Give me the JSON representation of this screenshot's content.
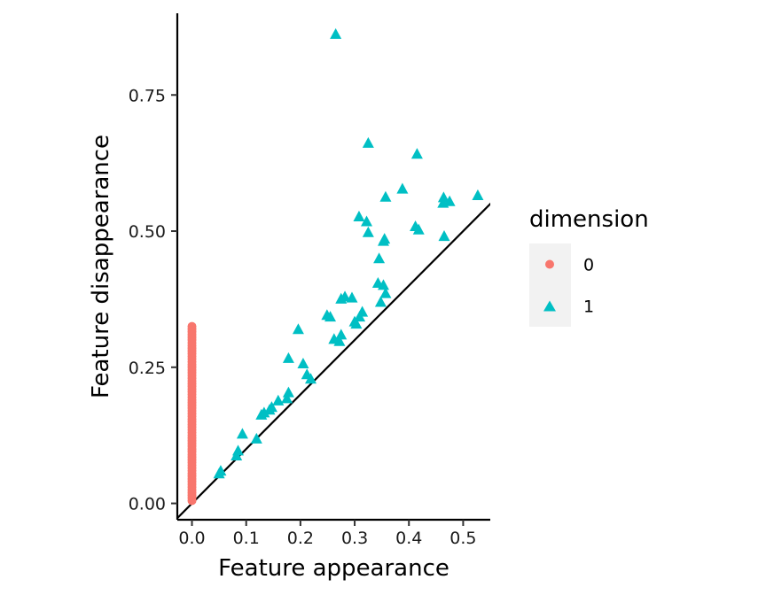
{
  "chart_data": {
    "type": "scatter",
    "title": "",
    "xlabel": "Feature appearance",
    "ylabel": "Feature disappearance",
    "xlim": [
      -0.027,
      0.55
    ],
    "ylim": [
      -0.03,
      0.9
    ],
    "x_ticks": [
      0.0,
      0.1,
      0.2,
      0.3,
      0.4,
      0.5
    ],
    "x_tick_labels": [
      "0.0",
      "0.1",
      "0.2",
      "0.3",
      "0.4",
      "0.5"
    ],
    "y_ticks": [
      0.0,
      0.25,
      0.5,
      0.75
    ],
    "y_tick_labels": [
      "0.00",
      "0.25",
      "0.50",
      "0.75"
    ],
    "grid": false,
    "diagonal_line": true,
    "legend": {
      "title": "dimension",
      "position": "right"
    },
    "series": [
      {
        "name": "0",
        "marker": "circle",
        "color": "#F8766D",
        "points": [
          [
            0,
            0.005
          ],
          [
            0,
            0.01
          ],
          [
            0,
            0.015
          ],
          [
            0,
            0.02
          ],
          [
            0,
            0.025
          ],
          [
            0,
            0.03
          ],
          [
            0,
            0.035
          ],
          [
            0,
            0.04
          ],
          [
            0,
            0.045
          ],
          [
            0,
            0.05
          ],
          [
            0,
            0.055
          ],
          [
            0,
            0.06
          ],
          [
            0,
            0.065
          ],
          [
            0,
            0.07
          ],
          [
            0,
            0.075
          ],
          [
            0,
            0.08
          ],
          [
            0,
            0.085
          ],
          [
            0,
            0.09
          ],
          [
            0,
            0.095
          ],
          [
            0,
            0.1
          ],
          [
            0,
            0.105
          ],
          [
            0,
            0.11
          ],
          [
            0,
            0.115
          ],
          [
            0,
            0.12
          ],
          [
            0,
            0.125
          ],
          [
            0,
            0.13
          ],
          [
            0,
            0.135
          ],
          [
            0,
            0.14
          ],
          [
            0,
            0.145
          ],
          [
            0,
            0.15
          ],
          [
            0,
            0.155
          ],
          [
            0,
            0.16
          ],
          [
            0,
            0.165
          ],
          [
            0,
            0.17
          ],
          [
            0,
            0.175
          ],
          [
            0,
            0.18
          ],
          [
            0,
            0.185
          ],
          [
            0,
            0.19
          ],
          [
            0,
            0.195
          ],
          [
            0,
            0.2
          ],
          [
            0,
            0.205
          ],
          [
            0,
            0.21
          ],
          [
            0,
            0.215
          ],
          [
            0,
            0.22
          ],
          [
            0,
            0.225
          ],
          [
            0,
            0.23
          ],
          [
            0,
            0.235
          ],
          [
            0,
            0.24
          ],
          [
            0,
            0.245
          ],
          [
            0,
            0.25
          ],
          [
            0,
            0.255
          ],
          [
            0,
            0.26
          ],
          [
            0,
            0.265
          ],
          [
            0,
            0.27
          ],
          [
            0,
            0.275
          ],
          [
            0,
            0.28
          ],
          [
            0,
            0.285
          ],
          [
            0,
            0.29
          ],
          [
            0,
            0.295
          ],
          [
            0,
            0.3
          ],
          [
            0,
            0.305
          ],
          [
            0,
            0.31
          ],
          [
            0,
            0.315
          ],
          [
            0,
            0.32
          ],
          [
            0,
            0.325
          ]
        ]
      },
      {
        "name": "1",
        "marker": "triangle",
        "color": "#00BFC4",
        "points": [
          [
            0.265,
            0.862
          ],
          [
            0.325,
            0.662
          ],
          [
            0.415,
            0.642
          ],
          [
            0.388,
            0.578
          ],
          [
            0.357,
            0.563
          ],
          [
            0.527,
            0.566
          ],
          [
            0.464,
            0.562
          ],
          [
            0.475,
            0.555
          ],
          [
            0.463,
            0.552
          ],
          [
            0.308,
            0.527
          ],
          [
            0.322,
            0.518
          ],
          [
            0.412,
            0.509
          ],
          [
            0.418,
            0.503
          ],
          [
            0.325,
            0.498
          ],
          [
            0.355,
            0.486
          ],
          [
            0.353,
            0.482
          ],
          [
            0.465,
            0.491
          ],
          [
            0.345,
            0.45
          ],
          [
            0.343,
            0.405
          ],
          [
            0.353,
            0.401
          ],
          [
            0.357,
            0.386
          ],
          [
            0.348,
            0.37
          ],
          [
            0.275,
            0.376
          ],
          [
            0.282,
            0.38
          ],
          [
            0.295,
            0.378
          ],
          [
            0.314,
            0.352
          ],
          [
            0.309,
            0.343
          ],
          [
            0.3,
            0.334
          ],
          [
            0.303,
            0.33
          ],
          [
            0.249,
            0.346
          ],
          [
            0.255,
            0.343
          ],
          [
            0.196,
            0.32
          ],
          [
            0.275,
            0.31
          ],
          [
            0.262,
            0.302
          ],
          [
            0.272,
            0.298
          ],
          [
            0.178,
            0.267
          ],
          [
            0.205,
            0.257
          ],
          [
            0.212,
            0.237
          ],
          [
            0.219,
            0.229
          ],
          [
            0.178,
            0.204
          ],
          [
            0.175,
            0.193
          ],
          [
            0.159,
            0.189
          ],
          [
            0.147,
            0.177
          ],
          [
            0.143,
            0.172
          ],
          [
            0.133,
            0.167
          ],
          [
            0.128,
            0.163
          ],
          [
            0.119,
            0.119
          ],
          [
            0.093,
            0.128
          ],
          [
            0.085,
            0.097
          ],
          [
            0.082,
            0.088
          ],
          [
            0.053,
            0.06
          ],
          [
            0.05,
            0.055
          ]
        ]
      }
    ]
  }
}
